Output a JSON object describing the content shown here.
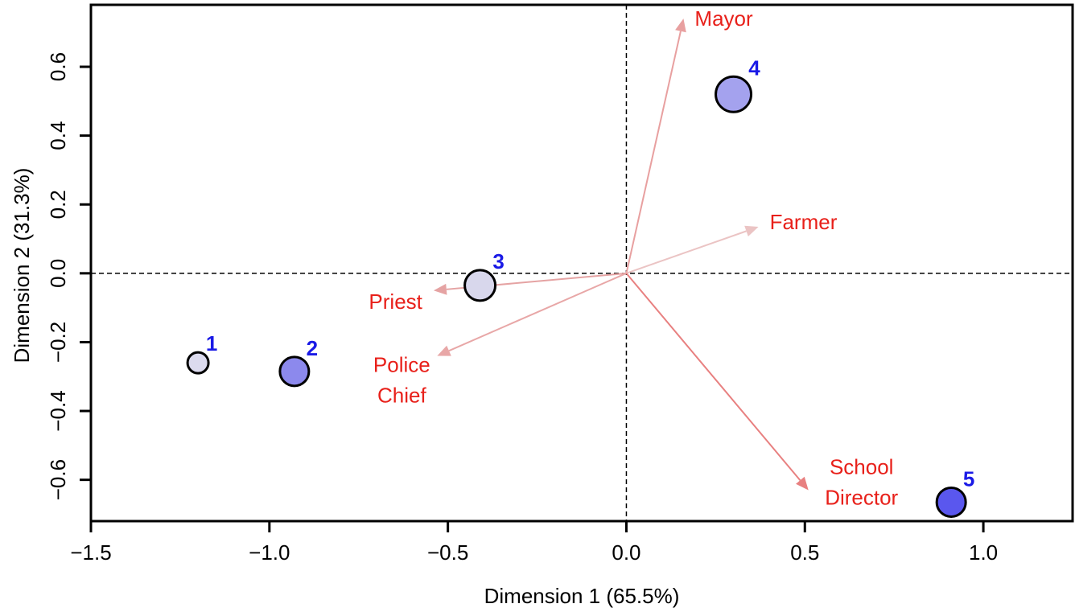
{
  "chart_data": {
    "type": "scatter",
    "xlabel": "Dimension 1 (65.5%)",
    "ylabel": "Dimension 2 (31.3%)",
    "xlim": [
      -1.5,
      1.25
    ],
    "ylim": [
      -0.72,
      0.78
    ],
    "x_ticks": [
      -1.5,
      -1.0,
      -0.5,
      0.0,
      0.5,
      1.0
    ],
    "x_tick_labels": [
      "−1.5",
      "−1.0",
      "−0.5",
      "0.0",
      "0.5",
      "1.0"
    ],
    "y_ticks": [
      -0.6,
      -0.4,
      -0.2,
      0.0,
      0.2,
      0.4,
      0.6
    ],
    "y_tick_labels": [
      "−0.6",
      "−0.4",
      "−0.2",
      "0.0",
      "0.2",
      "0.4",
      "0.6"
    ],
    "reference_lines": {
      "x": 0.0,
      "y": 0.0,
      "style": "dashed"
    },
    "points": [
      {
        "label": "1",
        "x": -1.2,
        "y": -0.26,
        "size": 1,
        "fill": "#dcdbee"
      },
      {
        "label": "2",
        "x": -0.93,
        "y": -0.285,
        "size": 2,
        "fill": "#8c89ed"
      },
      {
        "label": "3",
        "x": -0.41,
        "y": -0.035,
        "size": 3,
        "fill": "#d8d7ec"
      },
      {
        "label": "4",
        "x": 0.3,
        "y": 0.52,
        "size": 4,
        "fill": "#a4a2ee"
      },
      {
        "label": "5",
        "x": 0.91,
        "y": -0.665,
        "size": 5,
        "fill": "#5a57ee"
      }
    ],
    "vectors": [
      {
        "label_lines": [
          "Mayor"
        ],
        "x": 0.16,
        "y": 0.74,
        "color": "#e8a0a0"
      },
      {
        "label_lines": [
          "Farmer"
        ],
        "x": 0.37,
        "y": 0.135,
        "color": "#ebc4c4"
      },
      {
        "label_lines": [
          "Priest"
        ],
        "x": -0.54,
        "y": -0.05,
        "color": "#e5a3a3"
      },
      {
        "label_lines": [
          "Police",
          "Chief"
        ],
        "x": -0.53,
        "y": -0.24,
        "color": "#e8a7a7"
      },
      {
        "label_lines": [
          "School",
          "Director"
        ],
        "x": 0.51,
        "y": -0.63,
        "color": "#e88080"
      }
    ],
    "colors": {
      "vector_label": "#e8201a",
      "point_label": "#1a1ae6",
      "point_outline": "#000000"
    }
  }
}
